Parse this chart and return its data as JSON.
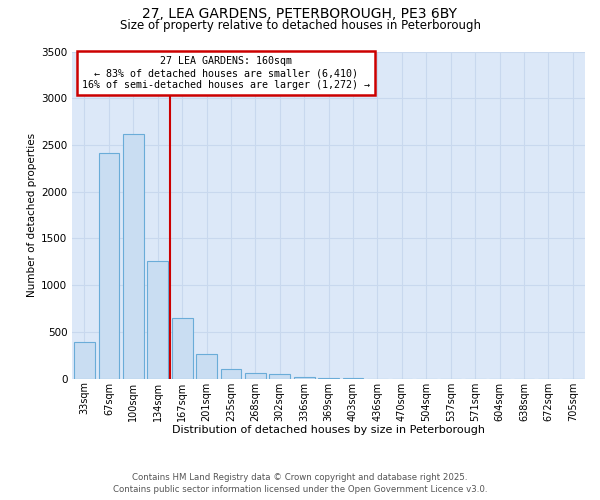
{
  "title1": "27, LEA GARDENS, PETERBOROUGH, PE3 6BY",
  "title2": "Size of property relative to detached houses in Peterborough",
  "xlabel": "Distribution of detached houses by size in Peterborough",
  "ylabel": "Number of detached properties",
  "categories": [
    "33sqm",
    "67sqm",
    "100sqm",
    "134sqm",
    "167sqm",
    "201sqm",
    "235sqm",
    "268sqm",
    "302sqm",
    "336sqm",
    "369sqm",
    "403sqm",
    "436sqm",
    "470sqm",
    "504sqm",
    "537sqm",
    "571sqm",
    "604sqm",
    "638sqm",
    "672sqm",
    "705sqm"
  ],
  "values": [
    390,
    2410,
    2620,
    1260,
    650,
    260,
    105,
    60,
    45,
    20,
    10,
    8,
    0,
    0,
    0,
    0,
    0,
    0,
    0,
    0,
    0
  ],
  "bar_color": "#c9ddf2",
  "bar_edge_color": "#6aacd8",
  "red_line_x": 3.5,
  "annotation_line1": "27 LEA GARDENS: 160sqm",
  "annotation_line2": "← 83% of detached houses are smaller (6,410)",
  "annotation_line3": "16% of semi-detached houses are larger (1,272) →",
  "annotation_box_color": "#ffffff",
  "annotation_box_edge_color": "#cc0000",
  "red_line_color": "#cc0000",
  "ylim": [
    0,
    3500
  ],
  "yticks": [
    0,
    500,
    1000,
    1500,
    2000,
    2500,
    3000,
    3500
  ],
  "grid_color": "#c8d8ee",
  "background_color": "#dce8f8",
  "footer1": "Contains HM Land Registry data © Crown copyright and database right 2025.",
  "footer2": "Contains public sector information licensed under the Open Government Licence v3.0."
}
